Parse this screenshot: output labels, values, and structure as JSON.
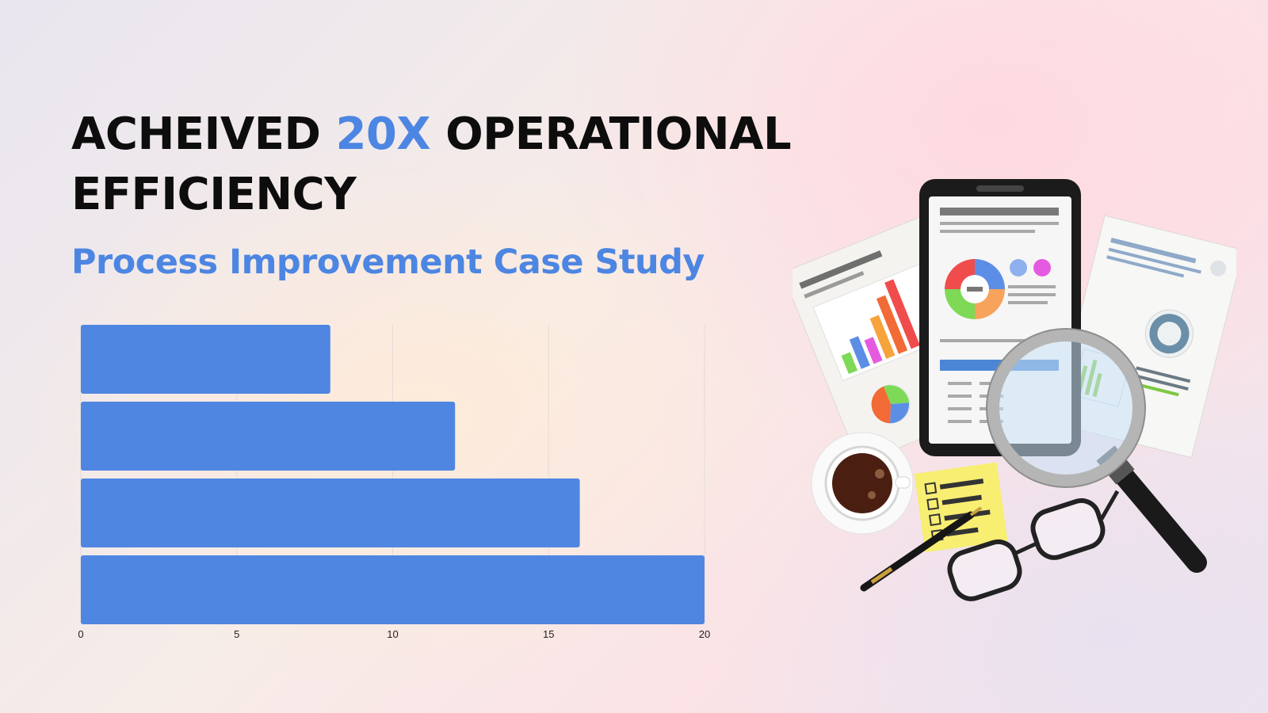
{
  "headline": {
    "part1": "ACHEIVED ",
    "accent": "20X",
    "part2": " OPERATIONAL",
    "line2": "EFFICIENCY"
  },
  "subtitle": "Process Improvement Case Study",
  "colors": {
    "accent": "#4d86e2",
    "bar": "#4f86e2",
    "text": "#0d0d0d"
  },
  "illustration": {
    "icons": [
      "report-paper-icon",
      "smartphone-report-icon",
      "magnifying-glass-icon",
      "coffee-cup-icon",
      "sticky-checklist-icon",
      "pen-icon",
      "eyeglasses-icon"
    ]
  },
  "chart_data": {
    "type": "bar",
    "orientation": "horizontal",
    "values": [
      8,
      12,
      16,
      20
    ],
    "xlim": [
      0,
      20
    ],
    "xticks": [
      "0",
      "5",
      "10",
      "15",
      "20"
    ],
    "grid": "vertical"
  }
}
